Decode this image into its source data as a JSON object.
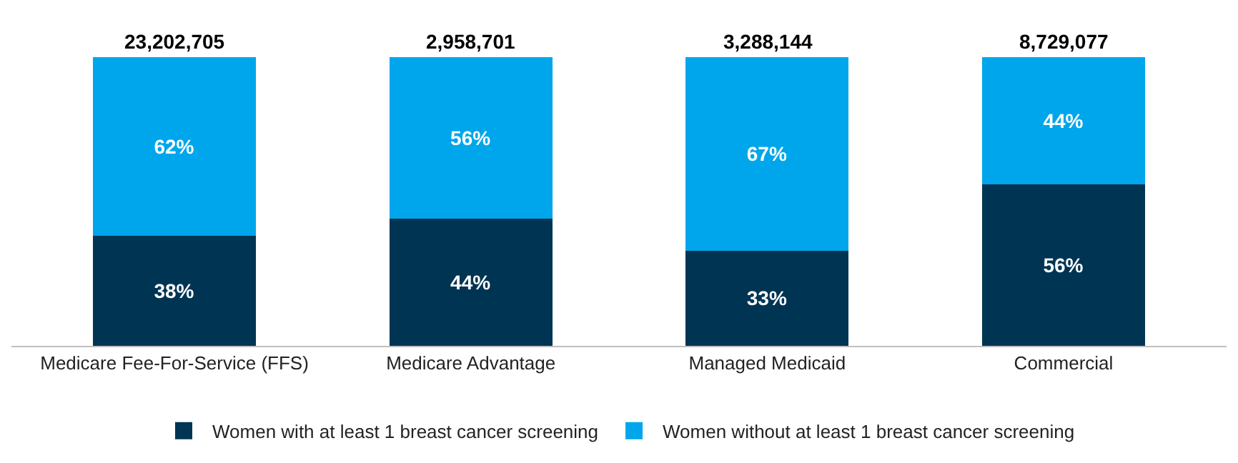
{
  "chart_data": {
    "type": "bar",
    "stacked": true,
    "categories": [
      "Medicare Fee-For-Service (FFS)",
      "Medicare Advantage",
      "Managed Medicaid",
      "Commercial"
    ],
    "series": [
      {
        "name": "Women with at least 1 breast cancer screening",
        "color": "#003453",
        "values": [
          38,
          44,
          33,
          56
        ],
        "value_labels": [
          "38%",
          "44%",
          "33%",
          "56%"
        ]
      },
      {
        "name": "Women without at least 1 breast cancer screening",
        "color": "#00a6eb",
        "values": [
          62,
          56,
          67,
          44
        ],
        "value_labels": [
          "62%",
          "56%",
          "67%",
          "44%"
        ]
      }
    ],
    "annotations": [
      "23,202,705",
      "2,958,701",
      "3,288,144",
      "8,729,077"
    ],
    "ylim": [
      0,
      100
    ],
    "tick_labels": "x",
    "grid": false,
    "legend": "bottom"
  }
}
